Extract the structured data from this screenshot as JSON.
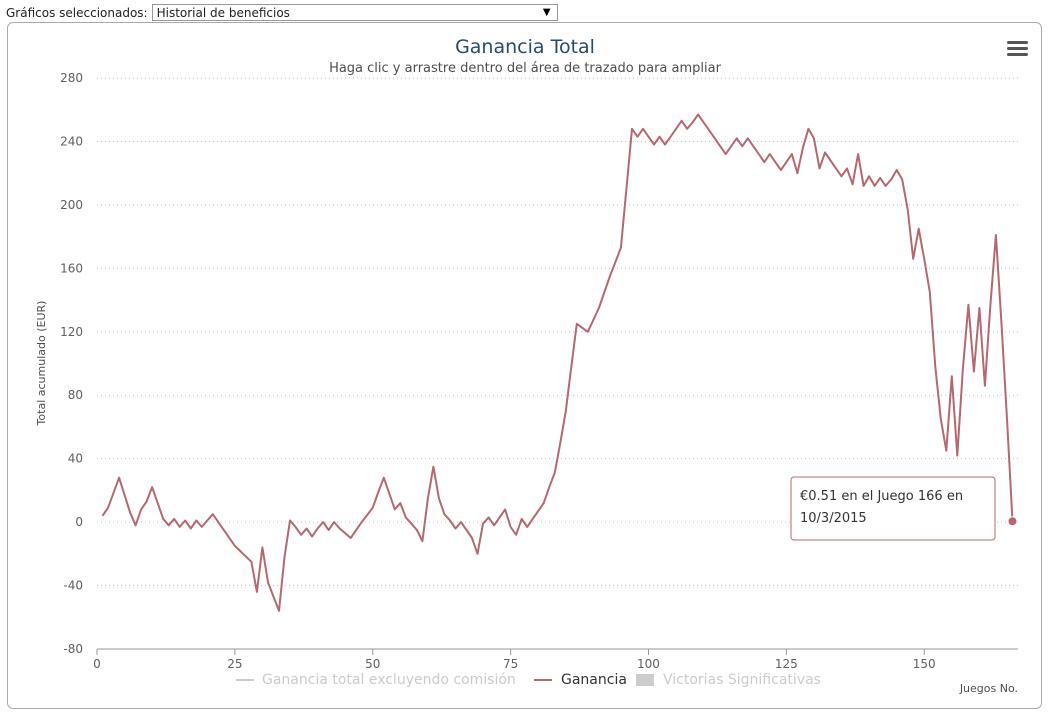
{
  "selector": {
    "label": "Gráficos seleccionados:",
    "selected": "Historial de beneficios"
  },
  "menu_icon": "hamburger-menu-icon",
  "colors": {
    "series": "#b5686e",
    "legend_hidden": "#cccccc",
    "grid": "#c0c0c0",
    "title": "#274b6d"
  },
  "chart_data": {
    "type": "line",
    "title": "Ganancia Total",
    "subtitle": "Haga clic y arrastre dentro del área de trazado para ampliar",
    "xlabel": "Juegos No.",
    "ylabel": "Total acumulado (EUR)",
    "xlim": [
      0,
      167
    ],
    "ylim": [
      -80,
      280
    ],
    "x_ticks": [
      0,
      25,
      50,
      75,
      100,
      125,
      150
    ],
    "y_ticks": [
      -80,
      -40,
      0,
      40,
      80,
      120,
      160,
      200,
      240,
      280
    ],
    "grid": true,
    "legend_position": "bottom",
    "legend": [
      {
        "name": "Ganancia total excluyendo comisión",
        "visible": false,
        "symbol": "line"
      },
      {
        "name": "Ganancia",
        "visible": true,
        "symbol": "line"
      },
      {
        "name": "Victorias Significativas",
        "visible": false,
        "symbol": "box"
      }
    ],
    "series": [
      {
        "name": "Ganancia",
        "x": [
          1,
          2,
          4,
          6,
          7,
          8,
          9,
          10,
          11,
          12,
          13,
          14,
          15,
          16,
          17,
          18,
          19,
          20,
          21,
          22,
          25,
          28,
          29,
          30,
          31,
          33,
          34,
          35,
          36,
          37,
          38,
          39,
          40,
          41,
          42,
          43,
          44,
          46,
          48,
          50,
          51,
          52,
          53,
          54,
          55,
          56,
          57,
          58,
          59,
          60,
          61,
          62,
          63,
          64,
          65,
          66,
          67,
          68,
          69,
          70,
          71,
          72,
          73,
          74,
          75,
          76,
          77,
          78,
          79,
          80,
          81,
          82,
          83,
          84,
          85,
          86,
          87,
          89,
          91,
          93,
          95,
          96,
          97,
          98,
          99,
          100,
          101,
          102,
          103,
          104,
          105,
          106,
          107,
          108,
          109,
          110,
          111,
          112,
          113,
          114,
          115,
          116,
          117,
          118,
          119,
          120,
          121,
          122,
          123,
          124,
          125,
          126,
          127,
          128,
          129,
          130,
          131,
          132,
          133,
          134,
          135,
          136,
          137,
          138,
          139,
          140,
          141,
          142,
          143,
          144,
          145,
          146,
          147,
          148,
          149,
          150,
          151,
          152,
          153,
          154,
          155,
          156,
          157,
          158,
          159,
          160,
          161,
          162,
          163,
          164,
          165,
          166
        ],
        "values": [
          4,
          9,
          28,
          6,
          -2,
          8,
          13,
          22,
          12,
          2,
          -2,
          2,
          -3,
          1,
          -4,
          1,
          -3,
          1,
          5,
          0,
          -15,
          -25,
          -44,
          -16,
          -38,
          -56,
          -22,
          1,
          -3,
          -8,
          -4,
          -9,
          -4,
          0,
          -5,
          0,
          -4,
          -10,
          0,
          9,
          19,
          28,
          18,
          8,
          12,
          3,
          -1,
          -5,
          -12,
          15,
          35,
          15,
          5,
          1,
          -4,
          0,
          -5,
          -10,
          -20,
          -1,
          3,
          -2,
          3,
          8,
          -3,
          -8,
          2,
          -3,
          2,
          7,
          12,
          22,
          31,
          50,
          70,
          98,
          125,
          120,
          135,
          155,
          173,
          210,
          248,
          243,
          248,
          243,
          238,
          243,
          238,
          243,
          248,
          253,
          248,
          252,
          257,
          252,
          247,
          242,
          237,
          232,
          237,
          242,
          237,
          242,
          237,
          232,
          227,
          232,
          227,
          222,
          227,
          232,
          220,
          236,
          248,
          242,
          223,
          233,
          228,
          223,
          218,
          223,
          213,
          232,
          212,
          218,
          212,
          217,
          212,
          216,
          222,
          216,
          197,
          166,
          185,
          166,
          145,
          98,
          65,
          45,
          92,
          42,
          97,
          137,
          95,
          135,
          86,
          137,
          181,
          125,
          65,
          0.51
        ]
      }
    ],
    "tooltip": {
      "lines": [
        "€0.51 en el Juego 166 en",
        "10/3/2015"
      ]
    }
  }
}
